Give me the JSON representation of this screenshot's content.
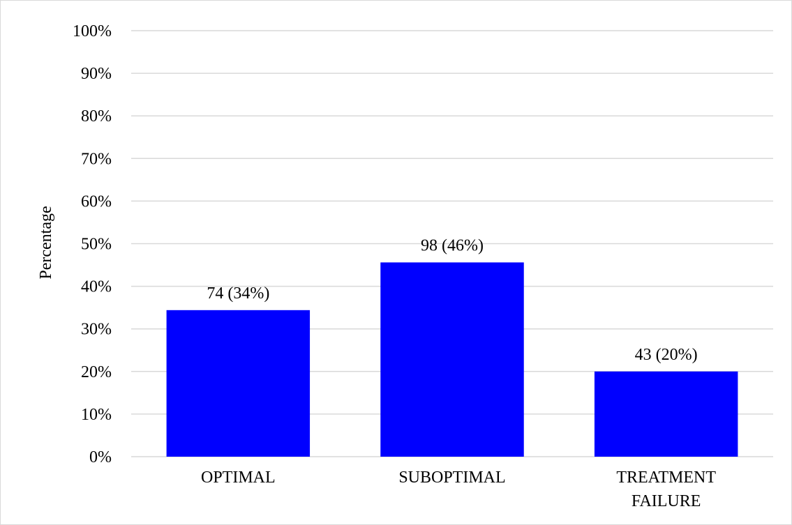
{
  "chart_data": {
    "type": "bar",
    "title": "",
    "xlabel": "",
    "ylabel": "Percentage",
    "ylim": [
      0,
      100
    ],
    "y_ticks": [
      "0%",
      "10%",
      "20%",
      "30%",
      "40%",
      "50%",
      "60%",
      "70%",
      "80%",
      "90%",
      "100%"
    ],
    "grid": true,
    "categories": [
      [
        "OPTIMAL"
      ],
      [
        "SUBOPTIMAL"
      ],
      [
        "TREATMENT",
        "FAILURE"
      ]
    ],
    "values": [
      34.4,
      45.6,
      20.0
    ],
    "data_labels": [
      "74 (34%)",
      "98 (46%)",
      "43 (20%)"
    ],
    "bar_color": "#0000ff",
    "grid_color": "#d9d9d9"
  }
}
